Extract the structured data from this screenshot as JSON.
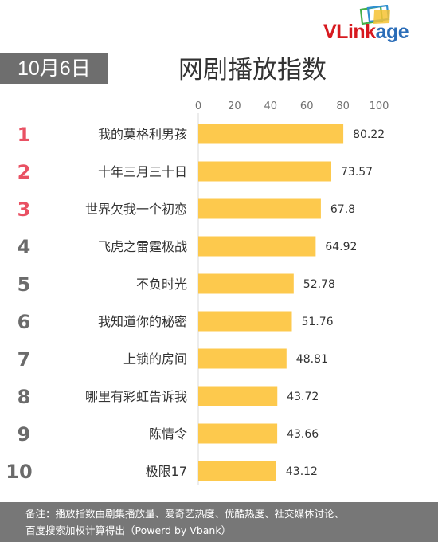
{
  "header": {
    "date_badge": "10月6日",
    "title": "网剧播放指数",
    "logo_main": "VLink",
    "logo_tail": "age"
  },
  "chart_data": {
    "type": "bar",
    "orientation": "horizontal",
    "title": "网剧播放指数",
    "categories": [
      "我的莫格利男孩",
      "十年三月三十日",
      "世界欠我一个初恋",
      "飞虎之雷霆极战",
      "不负时光",
      "我知道你的秘密",
      "上锁的房间",
      "哪里有彩虹告诉我",
      "陈情令",
      "极限17"
    ],
    "ranks": [
      "1",
      "2",
      "3",
      "4",
      "5",
      "6",
      "7",
      "8",
      "9",
      "10"
    ],
    "values": [
      80.22,
      73.57,
      67.8,
      64.92,
      52.78,
      51.76,
      48.81,
      43.72,
      43.66,
      43.12
    ],
    "xlim": [
      0,
      100
    ],
    "xticks": [
      0,
      20,
      40,
      60,
      80,
      100
    ],
    "grid": false,
    "colors": {
      "bar": "#fdc94d",
      "rank_top": "#e95163",
      "rank_other": "#6b6b6b",
      "label": "#333333",
      "axis_text": "#707070"
    }
  },
  "footer": {
    "line1": "备注：播放指数由剧集播放量、爱奇艺热度、优酷热度、社交媒体讨论、",
    "line2": "百度搜索加权计算得出（Powerd by Vbank）"
  }
}
